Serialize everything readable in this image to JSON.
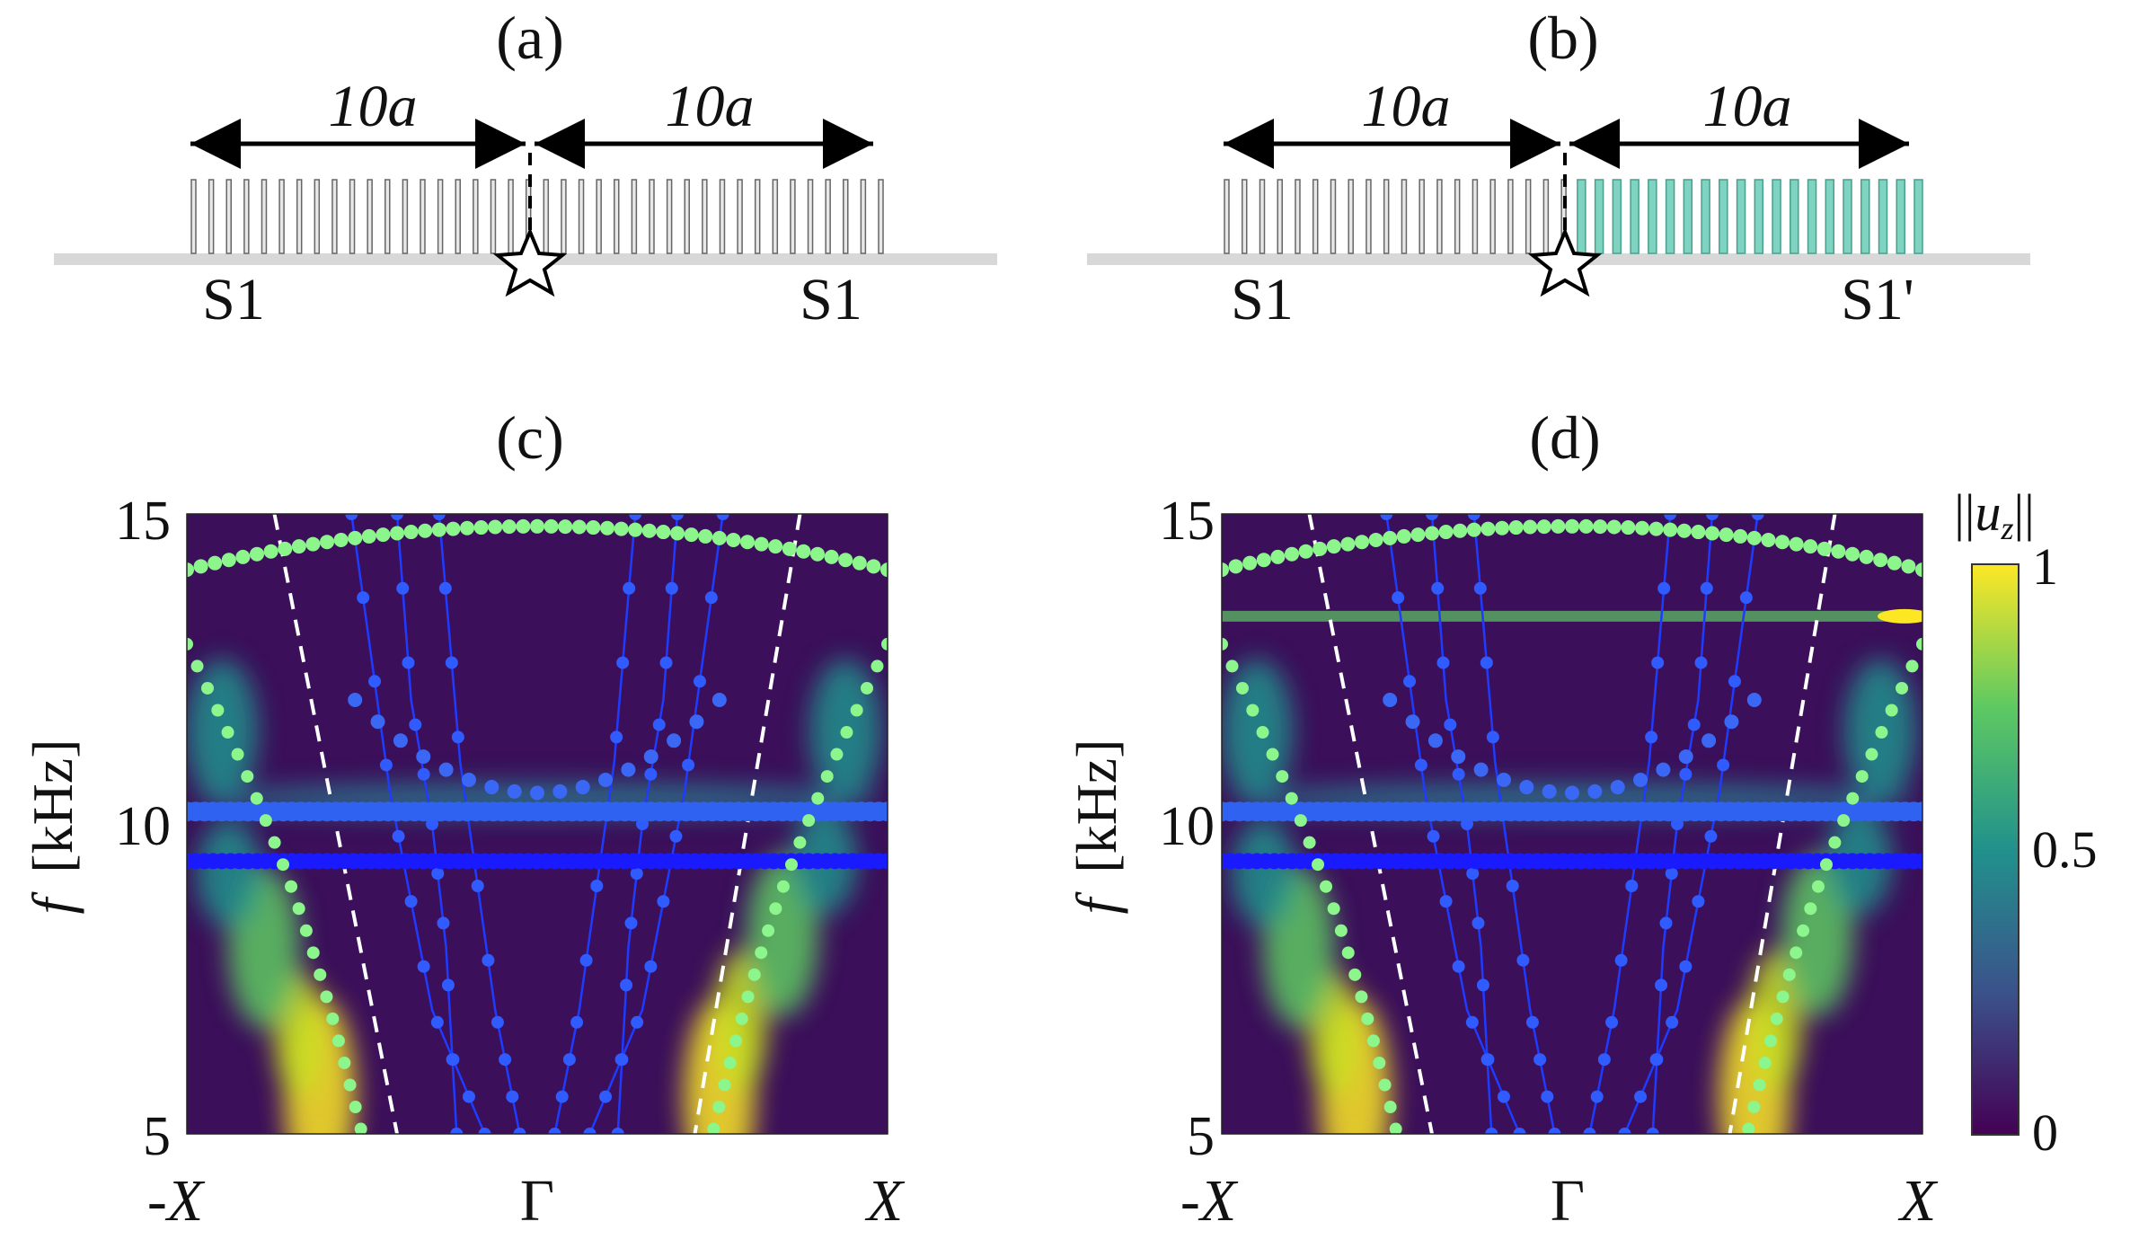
{
  "panels": {
    "a": {
      "label": "(a)",
      "left_span": "10a",
      "right_span": "10a",
      "left_name": "S1",
      "right_name": "S1"
    },
    "b": {
      "label": "(b)",
      "left_span": "10a",
      "right_span": "10a",
      "left_name": "S1",
      "right_name": "S1'"
    },
    "c": {
      "label": "(c)"
    },
    "d": {
      "label": "(d)"
    }
  },
  "axes": {
    "ylabel_italic": "f",
    "ylabel_unit": "[kHz]",
    "y_ticks": [
      "15",
      "10",
      "5"
    ],
    "x_ticks": [
      "-X",
      "Γ",
      "X"
    ]
  },
  "colorbar": {
    "title": "||u_z||",
    "ticks": [
      "1",
      "0.5",
      "0"
    ],
    "colormap": [
      "#440154",
      "#3b528b",
      "#21918c",
      "#5ec962",
      "#fde725"
    ]
  },
  "colors": {
    "green_markers": "#8cf58c",
    "blue_markers": "#2f5bff",
    "dark_blue_markers": "#1a1aff",
    "cyan_resonators": "#7fd3c1",
    "substrate": "#d8d8d8",
    "background": "#3b0f5a"
  },
  "chart_data": [
    {
      "type": "heatmap",
      "panel": "c",
      "x_range": [
        -1,
        1
      ],
      "ylim": [
        5,
        15
      ],
      "ylabel": "f [kHz]",
      "xticks": [
        "-X",
        "Γ",
        "X"
      ],
      "yticks": [
        5,
        10,
        15
      ],
      "flat_bands_khz": [
        10.2,
        9.4
      ],
      "green_branch_top_khz": {
        "edge": 14.1,
        "center": 14.8
      },
      "green_branch_mid_khz": {
        "edge": 12.9,
        "low": 5.0
      }
    },
    {
      "type": "heatmap",
      "panel": "d",
      "x_range": [
        -1,
        1
      ],
      "ylim": [
        5,
        15
      ],
      "ylabel": "f [kHz]",
      "xticks": [
        "-X",
        "Γ",
        "X"
      ],
      "yticks": [
        5,
        10,
        15
      ],
      "flat_bands_khz": [
        10.2,
        9.4
      ],
      "extra_horizontal_band_khz": 13.3,
      "green_branch_top_khz": {
        "edge": 14.1,
        "center": 14.8
      },
      "green_branch_mid_khz": {
        "edge": 12.9,
        "low": 5.0
      }
    }
  ]
}
